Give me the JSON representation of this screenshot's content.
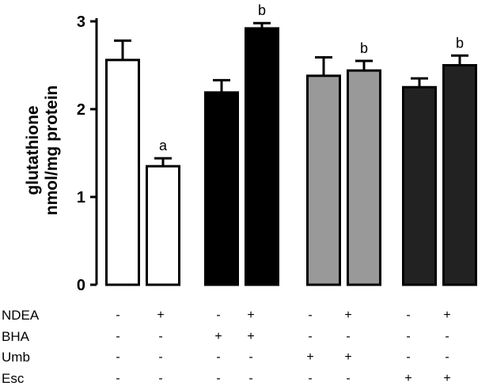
{
  "chart_data": {
    "type": "bar",
    "ylabel_line1": "glutathione",
    "ylabel_line2": "nmol/mg protein",
    "ylim": [
      0,
      3
    ],
    "yticks": [
      "0",
      "1",
      "2",
      "3"
    ],
    "grid": false,
    "bars": [
      {
        "value": 2.56,
        "error": 0.22,
        "fill": "#ffffff",
        "sig": ""
      },
      {
        "value": 1.35,
        "error": 0.09,
        "fill": "#ffffff",
        "sig": "a"
      },
      {
        "value": 2.19,
        "error": 0.14,
        "fill": "#000000",
        "sig": ""
      },
      {
        "value": 2.92,
        "error": 0.06,
        "fill": "#000000",
        "sig": "b"
      },
      {
        "value": 2.38,
        "error": 0.21,
        "fill": "#999999",
        "sig": ""
      },
      {
        "value": 2.44,
        "error": 0.11,
        "fill": "#999999",
        "sig": "b"
      },
      {
        "value": 2.25,
        "error": 0.1,
        "fill": "#222222",
        "sig": ""
      },
      {
        "value": 2.5,
        "error": 0.11,
        "fill": "#222222",
        "sig": "b"
      }
    ],
    "treatment_table": [
      {
        "label": "NDEA",
        "signs": [
          "-",
          "+",
          "-",
          "+",
          "-",
          "+",
          "-",
          "+"
        ]
      },
      {
        "label": "BHA",
        "signs": [
          "-",
          "-",
          "+",
          "+",
          "-",
          "-",
          "-",
          "-"
        ]
      },
      {
        "label": "Umb",
        "signs": [
          "-",
          "-",
          "-",
          "-",
          "+",
          "+",
          "-",
          "-"
        ]
      },
      {
        "label": "Esc",
        "signs": [
          "-",
          "-",
          "-",
          "-",
          "-",
          "-",
          "+",
          "+"
        ]
      }
    ]
  }
}
